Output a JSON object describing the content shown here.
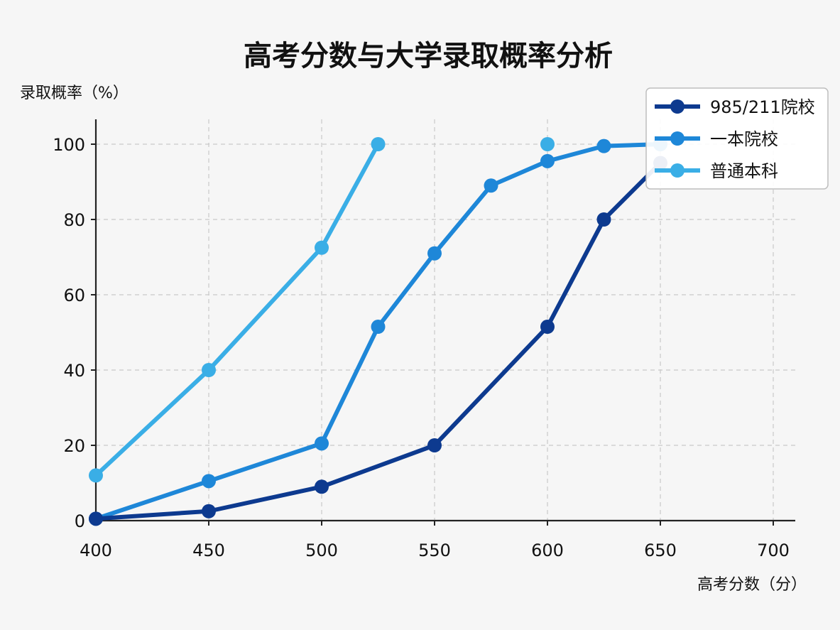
{
  "chart_data": {
    "type": "line",
    "title": "高考分数与大学录取概率分析",
    "xlabel": "高考分数（分）",
    "ylabel": "录取概率（%）",
    "xlim": [
      400,
      710
    ],
    "ylim": [
      0,
      107
    ],
    "x_ticks": [
      "400",
      "450",
      "500",
      "550",
      "600",
      "650",
      "700"
    ],
    "y_ticks": [
      "0",
      "20",
      "40",
      "60",
      "80",
      "100"
    ],
    "grid": true,
    "legend_position": "top-right",
    "series": [
      {
        "name": "985/211院校",
        "color": "#0d3a8f",
        "points": [
          [
            400,
            0.5
          ],
          [
            450,
            2.5
          ],
          [
            500,
            9
          ],
          [
            550,
            20
          ],
          [
            600,
            51.5
          ],
          [
            625,
            80
          ],
          [
            650,
            95
          ]
        ]
      },
      {
        "name": "一本院校",
        "color": "#1e87d8",
        "points": [
          [
            400,
            0.5
          ],
          [
            450,
            10.5
          ],
          [
            500,
            20.5
          ],
          [
            525,
            51.5
          ],
          [
            550,
            71
          ],
          [
            575,
            89
          ],
          [
            600,
            95.5
          ],
          [
            625,
            99.5
          ],
          [
            650,
            100
          ]
        ]
      },
      {
        "name": "普通本科",
        "color": "#3aaee6",
        "points": [
          [
            400,
            12
          ],
          [
            450,
            40
          ],
          [
            500,
            72.5
          ],
          [
            525,
            100
          ]
        ],
        "extra_points": [
          [
            600,
            100
          ]
        ]
      }
    ]
  }
}
